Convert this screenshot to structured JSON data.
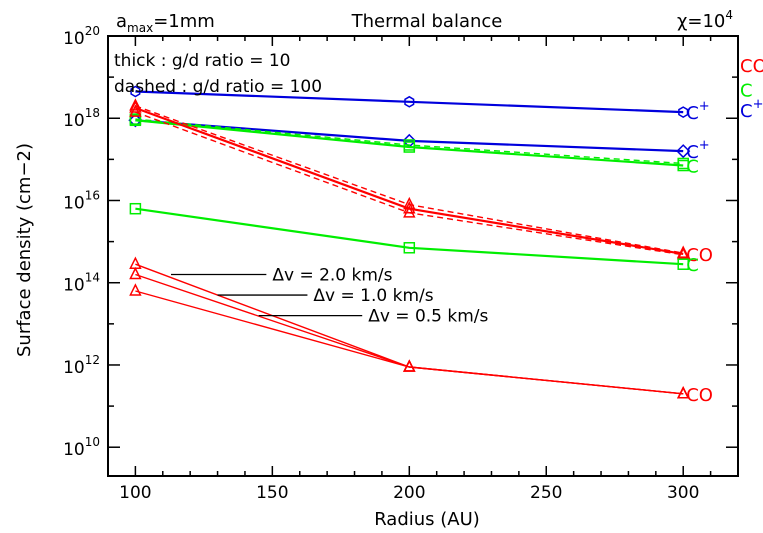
{
  "chart_data": {
    "type": "line",
    "header": {
      "left_base": "a",
      "left_sub": "max",
      "left_rest": "=1mm",
      "center": "Thermal balance",
      "right_base": "χ=10",
      "right_sup": "4"
    },
    "xlabel": "Radius (AU)",
    "ylabel": "Surface density (cm−2)",
    "xlim": [
      90,
      320
    ],
    "ylog": true,
    "ylim_exp": [
      9.3,
      20
    ],
    "x_ticks": [
      100,
      150,
      200,
      250,
      300
    ],
    "y_tick_exps": [
      10,
      12,
      14,
      16,
      18,
      20
    ],
    "y_tick_base": "10",
    "grid": false,
    "legend_notes": [
      "thick : g/d ratio = 10",
      "dashed : g/d ratio = 100"
    ],
    "right_legend": [
      {
        "base": "CO",
        "sup": "",
        "color": "#ff0000",
        "logy": 19.3
      },
      {
        "base": "C",
        "sup": "",
        "color": "#00ee00",
        "logy": 18.7
      },
      {
        "base": "C",
        "sup": "+",
        "color": "#0000dd",
        "logy": 18.2
      }
    ],
    "x": [
      100,
      200,
      300
    ],
    "series": [
      {
        "species": "C+",
        "style": "thick",
        "color": "#0000dd",
        "marker": "hexagon",
        "logy": [
          18.65,
          18.4,
          18.15
        ],
        "label": {
          "base": "C",
          "sup": "+"
        }
      },
      {
        "species": "C+",
        "style": "thick",
        "color": "#0000dd",
        "marker": "diamond",
        "logy": [
          17.95,
          17.45,
          17.2
        ],
        "label": {
          "base": "C",
          "sup": "+"
        }
      },
      {
        "species": "C",
        "style": "thick",
        "color": "#00ee00",
        "marker": "square",
        "logy": [
          17.95,
          17.3,
          16.85
        ],
        "label": {
          "base": "C",
          "sup": ""
        }
      },
      {
        "species": "C",
        "style": "dashed",
        "color": "#00ee00",
        "marker": "square",
        "logy": [
          17.98,
          17.35,
          16.9
        ]
      },
      {
        "species": "CO",
        "style": "thick",
        "color": "#ff0000",
        "marker": "triangle",
        "logy": [
          18.25,
          15.8,
          14.7
        ],
        "label": {
          "base": "CO",
          "sup": ""
        }
      },
      {
        "species": "CO",
        "style": "dashed",
        "color": "#ff0000",
        "marker": "triangle",
        "logy": [
          18.3,
          15.9,
          14.72
        ]
      },
      {
        "species": "CO",
        "style": "dashed",
        "color": "#ff0000",
        "marker": "triangle",
        "logy": [
          18.15,
          15.7,
          14.68
        ]
      },
      {
        "species": "C",
        "style": "thick",
        "color": "#00ee00",
        "marker": "square",
        "logy": [
          15.8,
          14.85,
          14.45
        ],
        "label": {
          "base": "C",
          "sup": ""
        }
      },
      {
        "species": "CO",
        "style": "thin",
        "color": "#ff0000",
        "marker": "triangle",
        "logy": [
          14.45,
          11.95,
          11.3
        ],
        "label": {
          "base": "CO",
          "sup": ""
        }
      },
      {
        "species": "CO",
        "style": "thin",
        "color": "#ff0000",
        "marker": "triangle",
        "logy": [
          14.2,
          11.95,
          11.3
        ]
      },
      {
        "species": "CO",
        "style": "thin",
        "color": "#ff0000",
        "marker": "triangle",
        "logy": [
          13.8,
          11.95,
          11.3
        ]
      }
    ],
    "annotations": [
      {
        "text": "Δv = 2.0 km/s",
        "x": 150,
        "logy": 14.2,
        "line_from": [
          113,
          14.2
        ]
      },
      {
        "text": "Δv = 1.0 km/s",
        "x": 165,
        "logy": 13.7,
        "line_from": [
          130,
          13.7
        ]
      },
      {
        "text": "Δv = 0.5 km/s",
        "x": 185,
        "logy": 13.2,
        "line_from": [
          145,
          13.2
        ]
      }
    ]
  }
}
